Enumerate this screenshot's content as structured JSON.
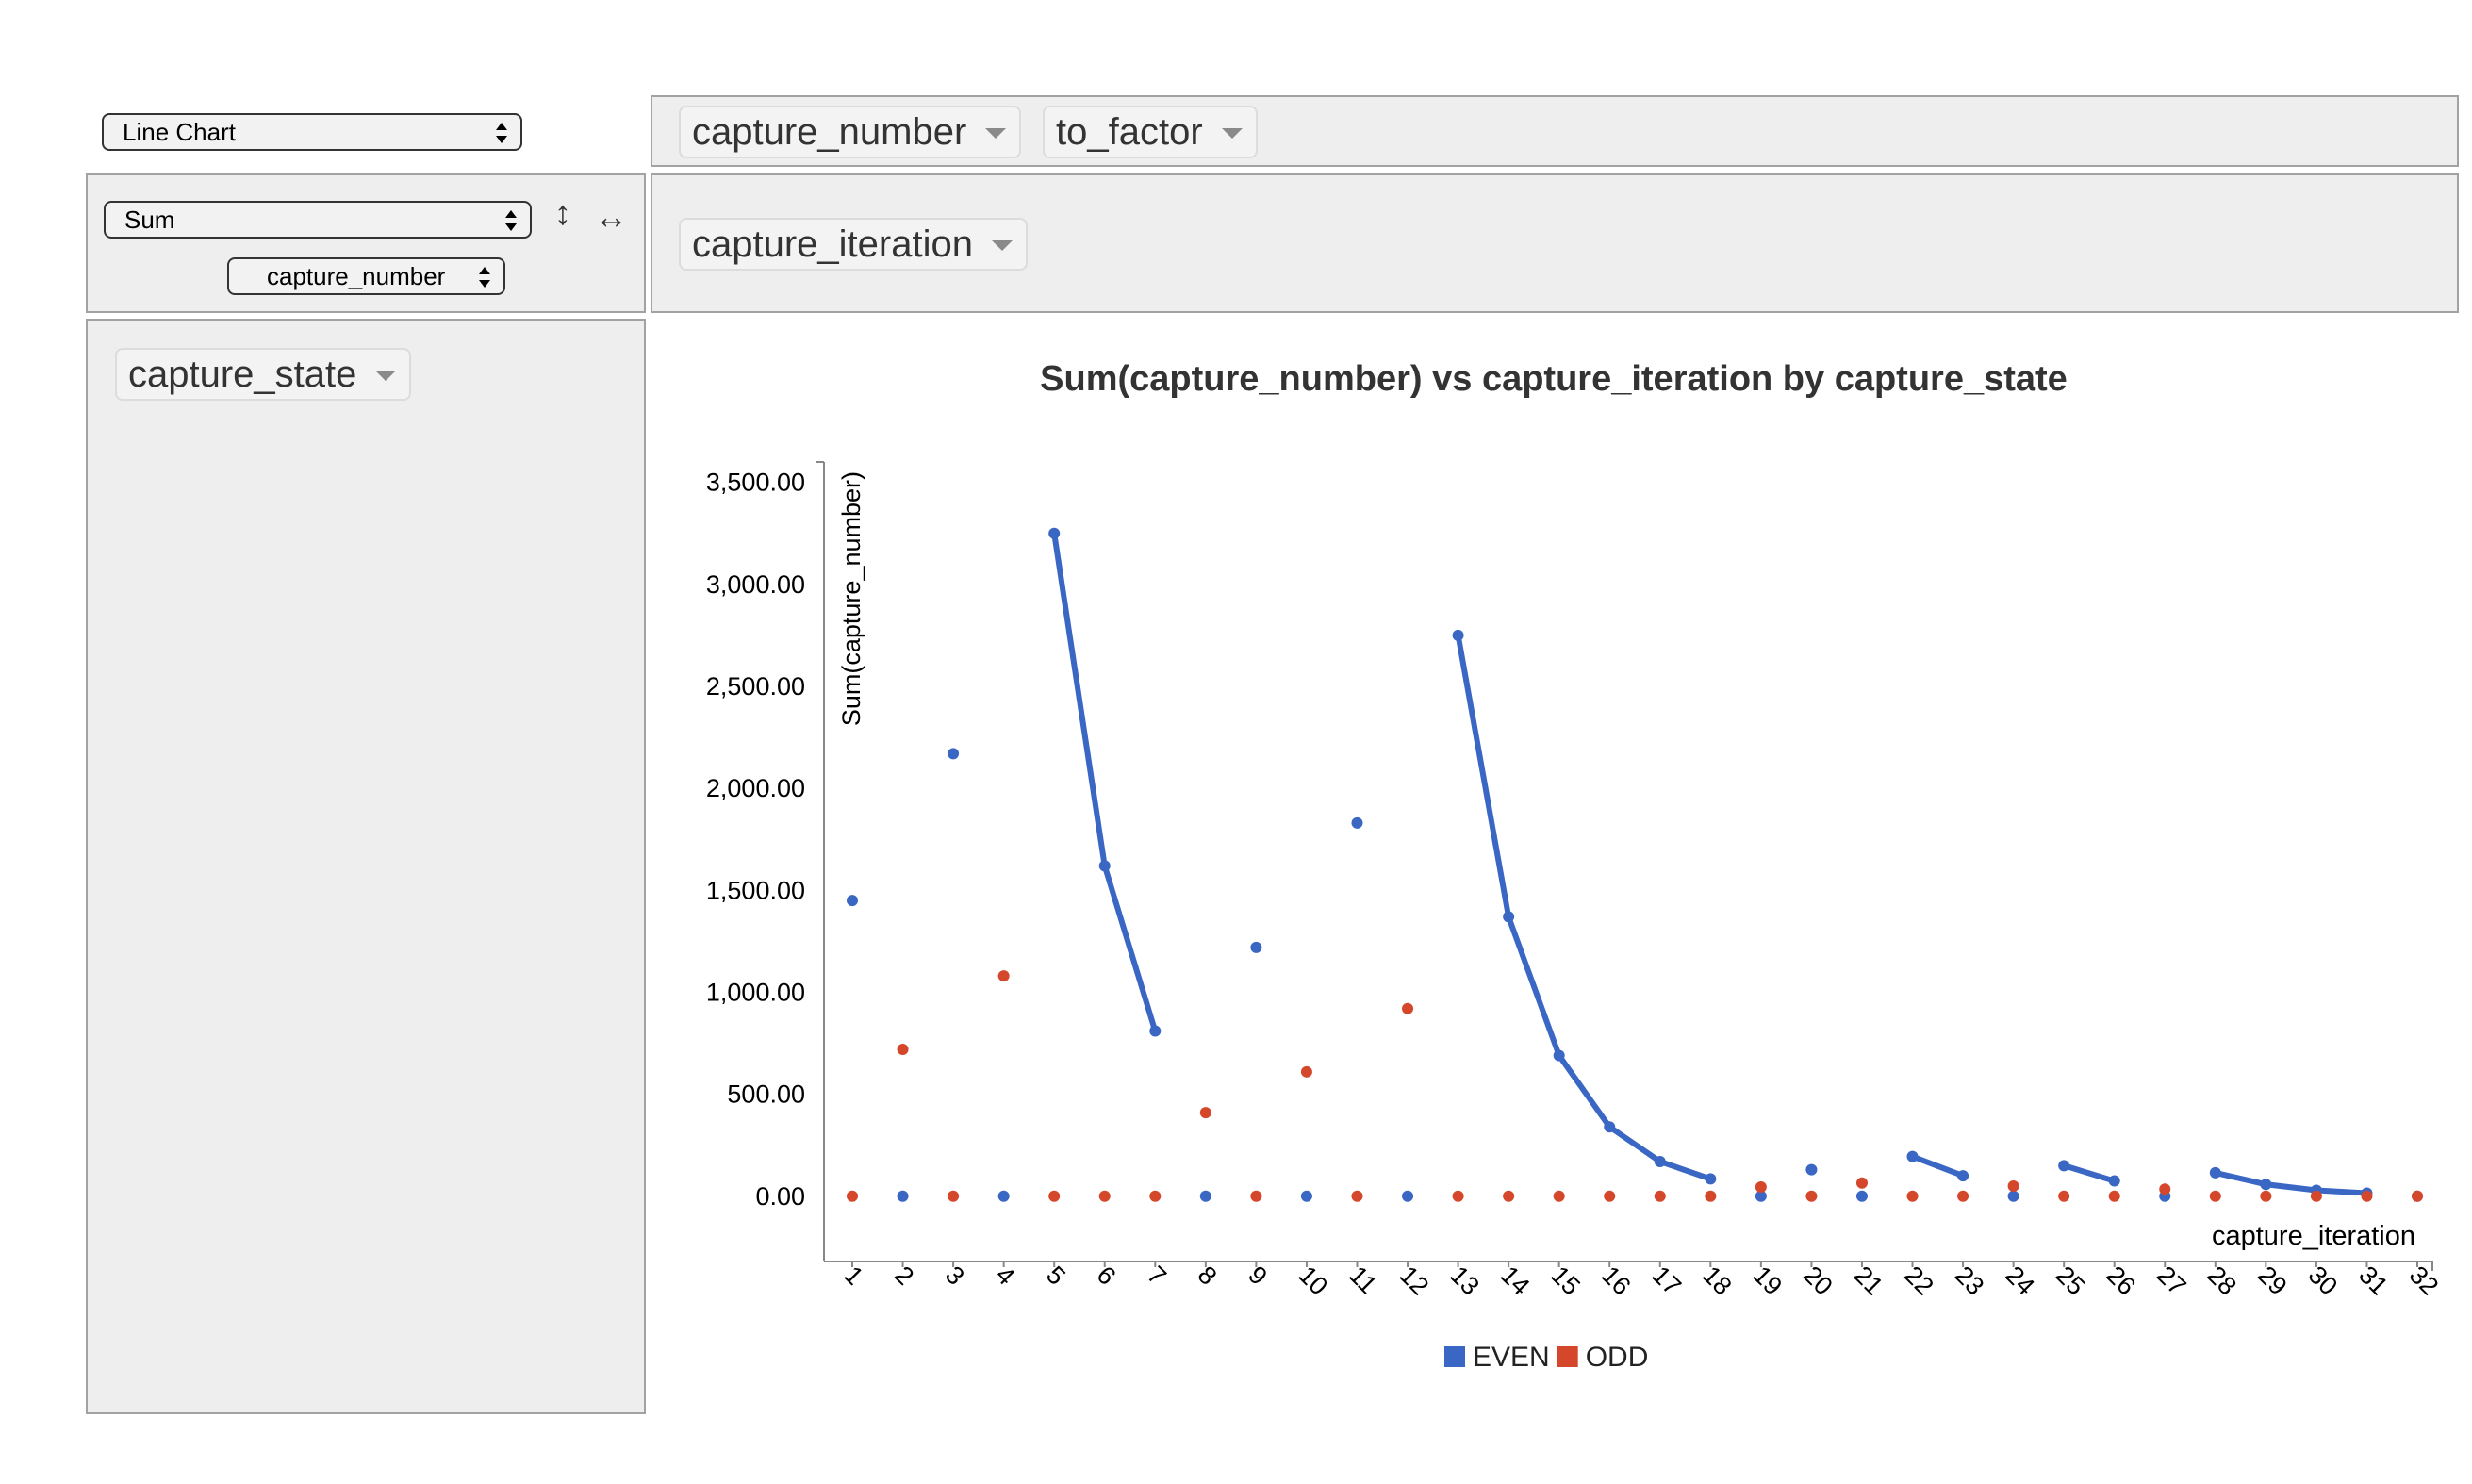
{
  "controls": {
    "renderer": "Line Chart",
    "aggregator": "Sum",
    "attribute": "capture_number",
    "row_sort_icon": "↕",
    "col_sort_icon": "↔"
  },
  "columns": [
    "capture_number",
    "to_factor"
  ],
  "rows_field": "capture_iteration",
  "unused_field": "capture_state",
  "chart_data": {
    "type": "line",
    "title": "Sum(capture_number) vs capture_iteration by capture_state",
    "xlabel": "capture_iteration",
    "ylabel": "Sum(capture_number)",
    "ylim": [
      -320,
      3600
    ],
    "yticks": [
      0,
      500,
      1000,
      1500,
      2000,
      2500,
      3000,
      3500
    ],
    "ytick_labels": [
      "0.00",
      "500.00",
      "1,000.00",
      "1,500.00",
      "2,000.00",
      "2,500.00",
      "3,000.00",
      "3,500.00"
    ],
    "categories": [
      "1",
      "2",
      "3",
      "4",
      "5",
      "6",
      "7",
      "8",
      "9",
      "10",
      "11",
      "12",
      "13",
      "14",
      "15",
      "16",
      "17",
      "18",
      "19",
      "20",
      "21",
      "22",
      "23",
      "24",
      "25",
      "26",
      "27",
      "28",
      "29",
      "30",
      "31",
      "32"
    ],
    "series": [
      {
        "name": "EVEN",
        "color": "#3a66c4",
        "values": [
          1450,
          0,
          2170,
          0,
          3250,
          1620,
          810,
          0,
          1220,
          0,
          1830,
          0,
          2750,
          1370,
          690,
          340,
          170,
          85,
          0,
          130,
          0,
          195,
          100,
          0,
          150,
          75,
          0,
          115,
          58,
          29,
          15,
          0
        ]
      },
      {
        "name": "ODD",
        "color": "#d4472a",
        "values": [
          0,
          720,
          0,
          1080,
          0,
          0,
          0,
          410,
          0,
          610,
          0,
          920,
          0,
          0,
          0,
          0,
          0,
          0,
          45,
          0,
          65,
          0,
          0,
          50,
          0,
          0,
          35,
          0,
          0,
          0,
          0,
          0
        ]
      }
    ],
    "legend_position": "bottom",
    "grid": false
  }
}
